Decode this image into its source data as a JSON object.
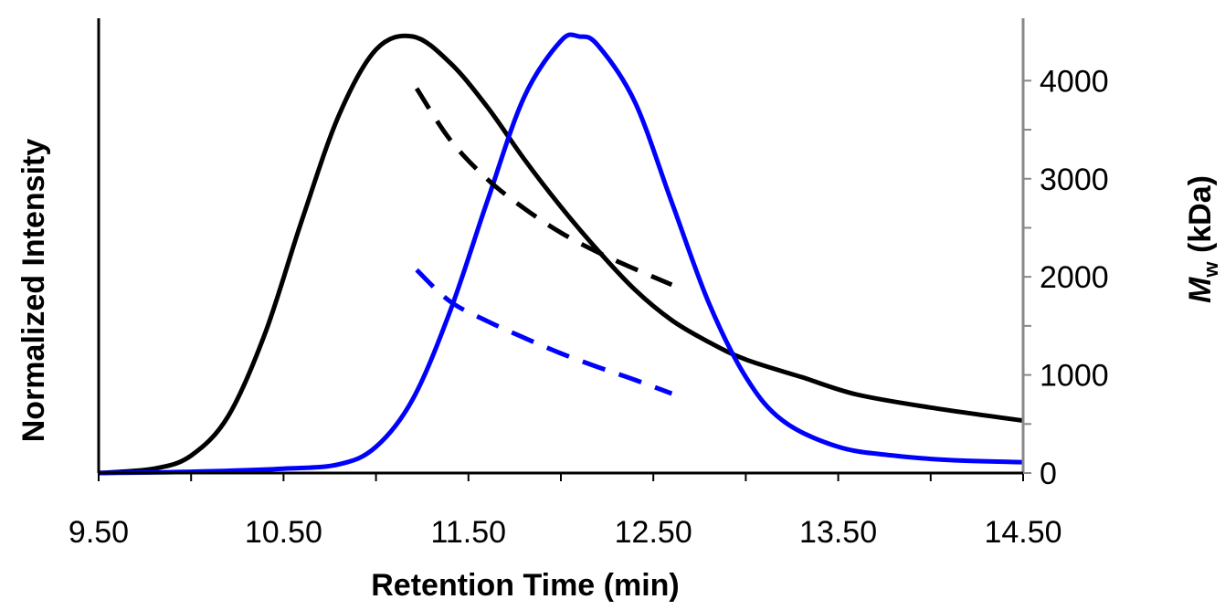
{
  "chart_data": {
    "type": "line",
    "xlabel": "Retention Time (min)",
    "ylabel_left": "Normalized Intensity",
    "ylabel_right": {
      "main": "M",
      "sub": "w",
      "rest": " (kDa)"
    },
    "xlim": [
      9.5,
      14.5
    ],
    "x_ticks": [
      9.5,
      10.5,
      11.5,
      12.5,
      13.5,
      14.5
    ],
    "x_tick_labels": [
      "9.50",
      "10.50",
      "11.50",
      "12.50",
      "13.50",
      "14.50"
    ],
    "x_minor_step": 0.5,
    "ylim_left": [
      0,
      1
    ],
    "ylim_right": [
      0,
      4450
    ],
    "y_right_ticks": [
      0,
      1000,
      2000,
      3000,
      4000
    ],
    "y_right_tick_labels": [
      "0",
      "1000",
      "2000",
      "3000",
      "4000"
    ],
    "y_right_minor_step": 500,
    "grid": false,
    "axis_colors": {
      "left": "#000000",
      "right": "#888888",
      "bottom": "#000000"
    },
    "series": [
      {
        "axis": "left",
        "style": "solid",
        "color": "#000000",
        "x": [
          9.5,
          9.8,
          10.0,
          10.2,
          10.4,
          10.6,
          10.8,
          11.0,
          11.2,
          11.4,
          11.6,
          11.8,
          12.0,
          12.2,
          12.4,
          12.6,
          12.8,
          13.0,
          13.3,
          13.6,
          14.0,
          14.5
        ],
        "y": [
          0.0,
          0.01,
          0.04,
          0.13,
          0.32,
          0.58,
          0.82,
          0.97,
          1.0,
          0.94,
          0.84,
          0.72,
          0.61,
          0.51,
          0.42,
          0.35,
          0.3,
          0.26,
          0.22,
          0.18,
          0.15,
          0.12
        ]
      },
      {
        "axis": "left",
        "style": "solid",
        "color": "#0000ff",
        "x": [
          9.5,
          10.0,
          10.5,
          10.8,
          11.0,
          11.2,
          11.4,
          11.6,
          11.8,
          12.0,
          12.1,
          12.2,
          12.4,
          12.6,
          12.8,
          13.0,
          13.2,
          13.5,
          13.8,
          14.1,
          14.5
        ],
        "y": [
          0.0,
          0.003,
          0.01,
          0.02,
          0.06,
          0.17,
          0.37,
          0.62,
          0.86,
          0.99,
          1.0,
          0.98,
          0.85,
          0.62,
          0.39,
          0.22,
          0.12,
          0.06,
          0.04,
          0.03,
          0.025
        ]
      },
      {
        "axis": "right",
        "style": "dashed",
        "color": "#000000",
        "x": [
          11.22,
          11.4,
          11.6,
          11.8,
          12.0,
          12.2,
          12.4,
          12.6
        ],
        "y": [
          3920,
          3400,
          3000,
          2700,
          2450,
          2250,
          2080,
          1920
        ]
      },
      {
        "axis": "right",
        "style": "dashed",
        "color": "#0000ff",
        "x": [
          11.22,
          11.4,
          11.6,
          11.8,
          12.0,
          12.2,
          12.4,
          12.6
        ],
        "y": [
          2070,
          1750,
          1550,
          1380,
          1220,
          1080,
          950,
          810
        ]
      }
    ]
  }
}
